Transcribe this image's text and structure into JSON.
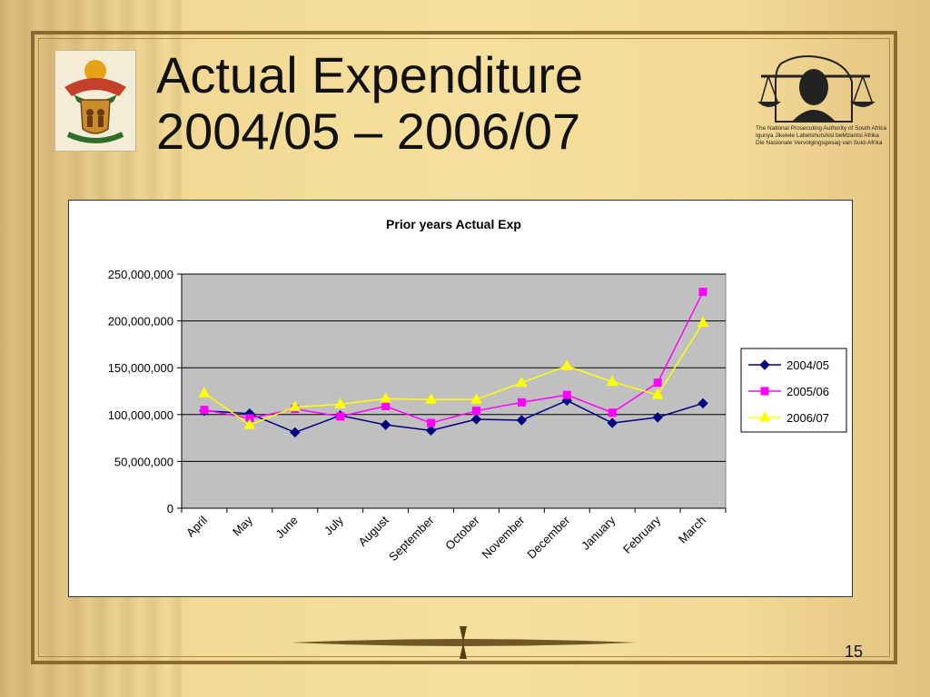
{
  "slide": {
    "title_lines": [
      "Actual Expenditure",
      "2004/05 – 2006/07"
    ],
    "page_number": "15"
  },
  "logos": {
    "left": {
      "icon": "coat-of-arms-icon"
    },
    "right": {
      "icon": "scales-of-justice-icon",
      "text_lines": [
        "The National Prosecuting Authority of South Africa",
        "Igunya Jikelele Labetshutshisi beMzantsi Afrika",
        "Die Nasionale Vervolgingsgesag van Suid-Afrika"
      ]
    }
  },
  "chart_data": {
    "type": "line",
    "title": "Prior years Actual Exp",
    "categories": [
      "April",
      "May",
      "June",
      "July",
      "August",
      "September",
      "October",
      "November",
      "December",
      "January",
      "February",
      "March"
    ],
    "ylim": [
      0,
      250000000
    ],
    "yticks": [
      0,
      50000000,
      100000000,
      150000000,
      200000000,
      250000000
    ],
    "ytick_labels": [
      "0",
      "50,000,000",
      "100,000,000",
      "150,000,000",
      "200,000,000",
      "250,000,000"
    ],
    "grid": true,
    "legend_position": "right",
    "series": [
      {
        "name": "2004/05",
        "color": "#000080",
        "marker": "diamond",
        "values": [
          104000000,
          101000000,
          81000000,
          99000000,
          89000000,
          83000000,
          95000000,
          94000000,
          115000000,
          91000000,
          97000000,
          112000000
        ]
      },
      {
        "name": "2005/06",
        "color": "#ff00ff",
        "marker": "square",
        "values": [
          105000000,
          96000000,
          106000000,
          98000000,
          109000000,
          91000000,
          104000000,
          113000000,
          121000000,
          102000000,
          134000000,
          231000000
        ]
      },
      {
        "name": "2006/07",
        "color": "#ffff00",
        "marker": "triangle",
        "values": [
          123000000,
          89000000,
          108000000,
          111000000,
          117000000,
          116000000,
          116000000,
          134000000,
          152000000,
          135000000,
          121000000,
          198000000
        ]
      }
    ]
  }
}
